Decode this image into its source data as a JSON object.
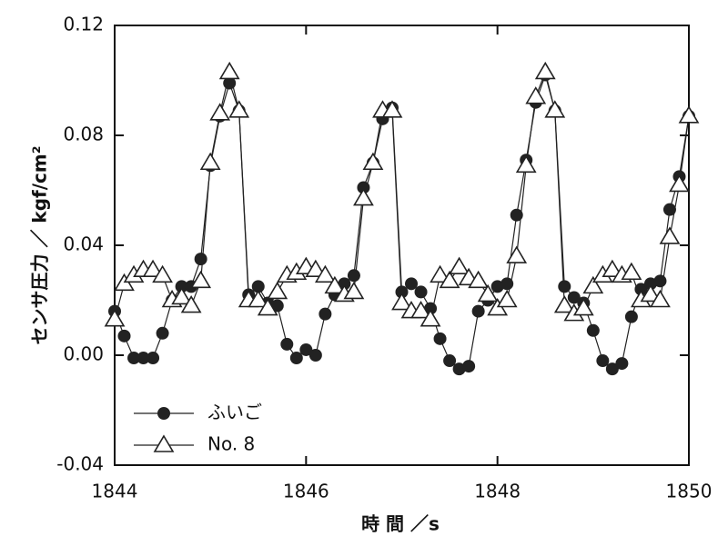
{
  "chart_data": {
    "type": "line",
    "xlabel": "時 間 ／s",
    "ylabel": "センサ圧力 ／ kgf/cm²",
    "x": [
      1844.0,
      1844.1,
      1844.2,
      1844.3,
      1844.4,
      1844.5,
      1844.6,
      1844.7,
      1844.8,
      1844.9,
      1845.0,
      1845.1,
      1845.2,
      1845.3,
      1845.4,
      1845.5,
      1845.6,
      1845.7,
      1845.8,
      1845.9,
      1846.0,
      1846.1,
      1846.2,
      1846.3,
      1846.4,
      1846.5,
      1846.6,
      1846.7,
      1846.8,
      1846.9,
      1847.0,
      1847.1,
      1847.2,
      1847.3,
      1847.4,
      1847.5,
      1847.6,
      1847.7,
      1847.8,
      1847.9,
      1848.0,
      1848.1,
      1848.2,
      1848.3,
      1848.4,
      1848.5,
      1848.6,
      1848.7,
      1848.8,
      1848.9,
      1849.0,
      1849.1,
      1849.2,
      1849.3,
      1849.4,
      1849.5,
      1849.6,
      1849.7,
      1849.8,
      1849.9,
      1850.0
    ],
    "series": [
      {
        "name": "ふいご",
        "color": "#222222",
        "marker": "circle",
        "values": [
          0.016,
          0.007,
          -0.001,
          -0.001,
          -0.001,
          0.008,
          0.02,
          0.025,
          0.025,
          0.035,
          0.069,
          0.087,
          0.099,
          0.089,
          0.022,
          0.025,
          0.019,
          0.018,
          0.004,
          -0.001,
          0.002,
          0.0,
          0.015,
          0.022,
          0.026,
          0.029,
          0.061,
          0.07,
          0.086,
          0.09,
          0.023,
          0.026,
          0.023,
          0.017,
          0.006,
          -0.002,
          -0.005,
          -0.004,
          0.016,
          0.02,
          0.025,
          0.026,
          0.051,
          0.071,
          0.092,
          0.102,
          0.089,
          0.025,
          0.021,
          0.019,
          0.009,
          -0.002,
          -0.005,
          -0.003,
          0.014,
          0.024,
          0.026,
          0.027,
          0.053,
          0.065,
          0.087
        ]
      },
      {
        "name": "No. 8",
        "color": "#222222",
        "marker": "triangle",
        "values": [
          0.013,
          0.026,
          0.029,
          0.031,
          0.031,
          0.029,
          0.02,
          0.021,
          0.018,
          0.027,
          0.07,
          0.088,
          0.103,
          0.089,
          0.02,
          0.02,
          0.017,
          0.023,
          0.029,
          0.03,
          0.032,
          0.031,
          0.029,
          0.025,
          0.022,
          0.023,
          0.057,
          0.07,
          0.089,
          0.089,
          0.019,
          0.016,
          0.016,
          0.013,
          0.029,
          0.027,
          0.032,
          0.028,
          0.027,
          0.022,
          0.017,
          0.02,
          0.036,
          0.069,
          0.094,
          0.103,
          0.089,
          0.018,
          0.015,
          0.017,
          0.025,
          0.029,
          0.031,
          0.029,
          0.03,
          0.02,
          0.022,
          0.02,
          0.043,
          0.062,
          0.087
        ]
      }
    ],
    "xlim": [
      1844,
      1850
    ],
    "xticks": [
      1844,
      1846,
      1848,
      1850
    ],
    "ylim": [
      -0.04,
      0.12
    ],
    "yticks": [
      -0.04,
      {
        "value": 0,
        "label": "0.00"
      },
      0.04,
      0.08,
      0.12
    ],
    "grid": false,
    "legend": "lower left"
  }
}
